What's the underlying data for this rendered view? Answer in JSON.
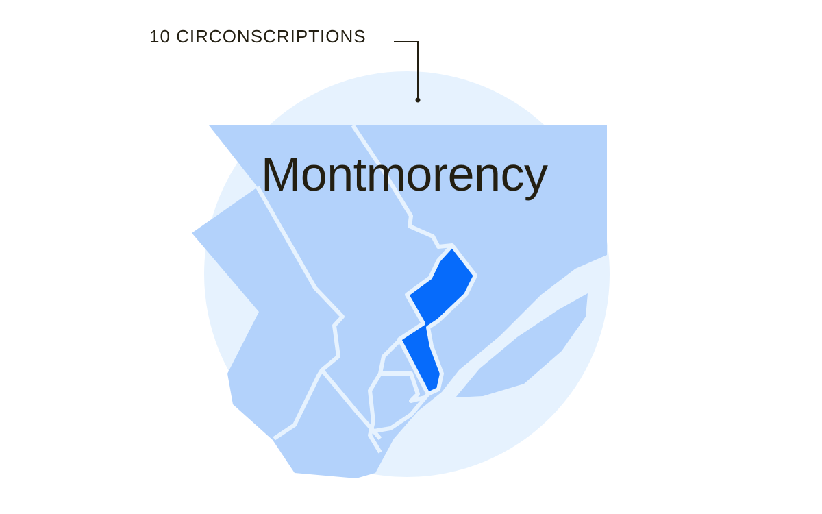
{
  "map": {
    "count_label": "10 CIRCONSCRIPTIONS",
    "highlighted_district": "Montmorency",
    "colors": {
      "background_circle": "#e6f2fe",
      "districts": "#b3d2fb",
      "highlight": "#066bfb",
      "borders": "#e6f2fe",
      "text": "#231f12"
    }
  }
}
